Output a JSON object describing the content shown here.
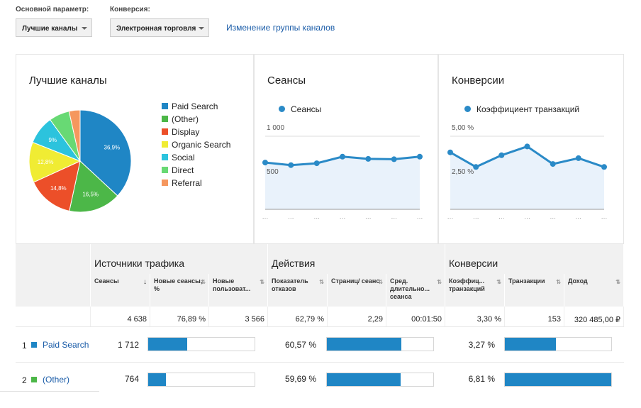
{
  "controls": {
    "primary_label": "Основной параметр:",
    "primary_value": "Лучшие каналы",
    "conversion_label": "Конверсия:",
    "conversion_value": "Электронная торговля",
    "change_link": "Изменение группы каналов"
  },
  "cards": {
    "channels": {
      "title": "Лучшие каналы",
      "legend": [
        {
          "label": "Paid Search",
          "color": "#1f86c5"
        },
        {
          "label": "(Other)",
          "color": "#4cb748"
        },
        {
          "label": "Display",
          "color": "#ec4f29"
        },
        {
          "label": "Organic Search",
          "color": "#f0ec33"
        },
        {
          "label": "Social",
          "color": "#2cc3dd"
        },
        {
          "label": "Direct",
          "color": "#68d974"
        },
        {
          "label": "Referral",
          "color": "#f5975e"
        }
      ]
    },
    "sessions": {
      "title": "Сеансы",
      "legend": "Сеансы",
      "tick_top": "1 000",
      "tick_mid": "500"
    },
    "conversions": {
      "title": "Конверсии",
      "legend": "Коэффициент транзакций",
      "tick_top": "5,00 %",
      "tick_mid": "2,50 %"
    }
  },
  "chart_data": [
    {
      "type": "pie",
      "categories": [
        "Paid Search",
        "(Other)",
        "Display",
        "Organic Search",
        "Social",
        "Direct",
        "Referral"
      ],
      "values": [
        36.9,
        16.5,
        14.8,
        12.8,
        9.0,
        6.5,
        3.5
      ],
      "data_labels": [
        "36,9%",
        "16,5%",
        "14,8%",
        "12,8%",
        "9%",
        "",
        ""
      ]
    },
    {
      "type": "area",
      "series": [
        {
          "name": "Сеансы",
          "values": [
            640,
            605,
            630,
            720,
            690,
            685,
            720
          ]
        }
      ],
      "ylim": [
        0,
        1000
      ],
      "yticks": [
        "1 000",
        "500"
      ]
    },
    {
      "type": "area",
      "series": [
        {
          "name": "Коэффициент транзакций",
          "values": [
            3.9,
            2.9,
            3.7,
            4.3,
            3.1,
            3.5,
            2.9
          ]
        }
      ],
      "ylim": [
        0,
        5
      ],
      "yticks": [
        "5,00 %",
        "2,50 %"
      ]
    }
  ],
  "table": {
    "groups": [
      "Источники трафика",
      "Действия",
      "Конверсии"
    ],
    "columns": [
      "Сеансы",
      "Новые сеансы, %",
      "Новые пользоват...",
      "Показатель отказов",
      "Страниц/ сеанс",
      "Сред. длительно... сеанса",
      "Коэффиц... транзакций",
      "Транзакции",
      "Доход"
    ],
    "totals": [
      "4 638",
      "76,89 %",
      "3 566",
      "62,79 %",
      "2,29",
      "00:01:50",
      "3,30 %",
      "153",
      "320 485,00 ₽"
    ],
    "rows": [
      {
        "index": "1",
        "channel": "Paid Search",
        "color": "#1f86c5",
        "sessions": "1 712",
        "sessions_share": 0.369,
        "bounce": "60,57 %",
        "bounce_share": 0.7,
        "conv": "3,27 %",
        "conv_share": 0.48
      },
      {
        "index": "2",
        "channel": "(Other)",
        "color": "#4cb748",
        "sessions": "764",
        "sessions_share": 0.165,
        "bounce": "59,69 %",
        "bounce_share": 0.69,
        "conv": "6,81 %",
        "conv_share": 1.0
      }
    ]
  }
}
